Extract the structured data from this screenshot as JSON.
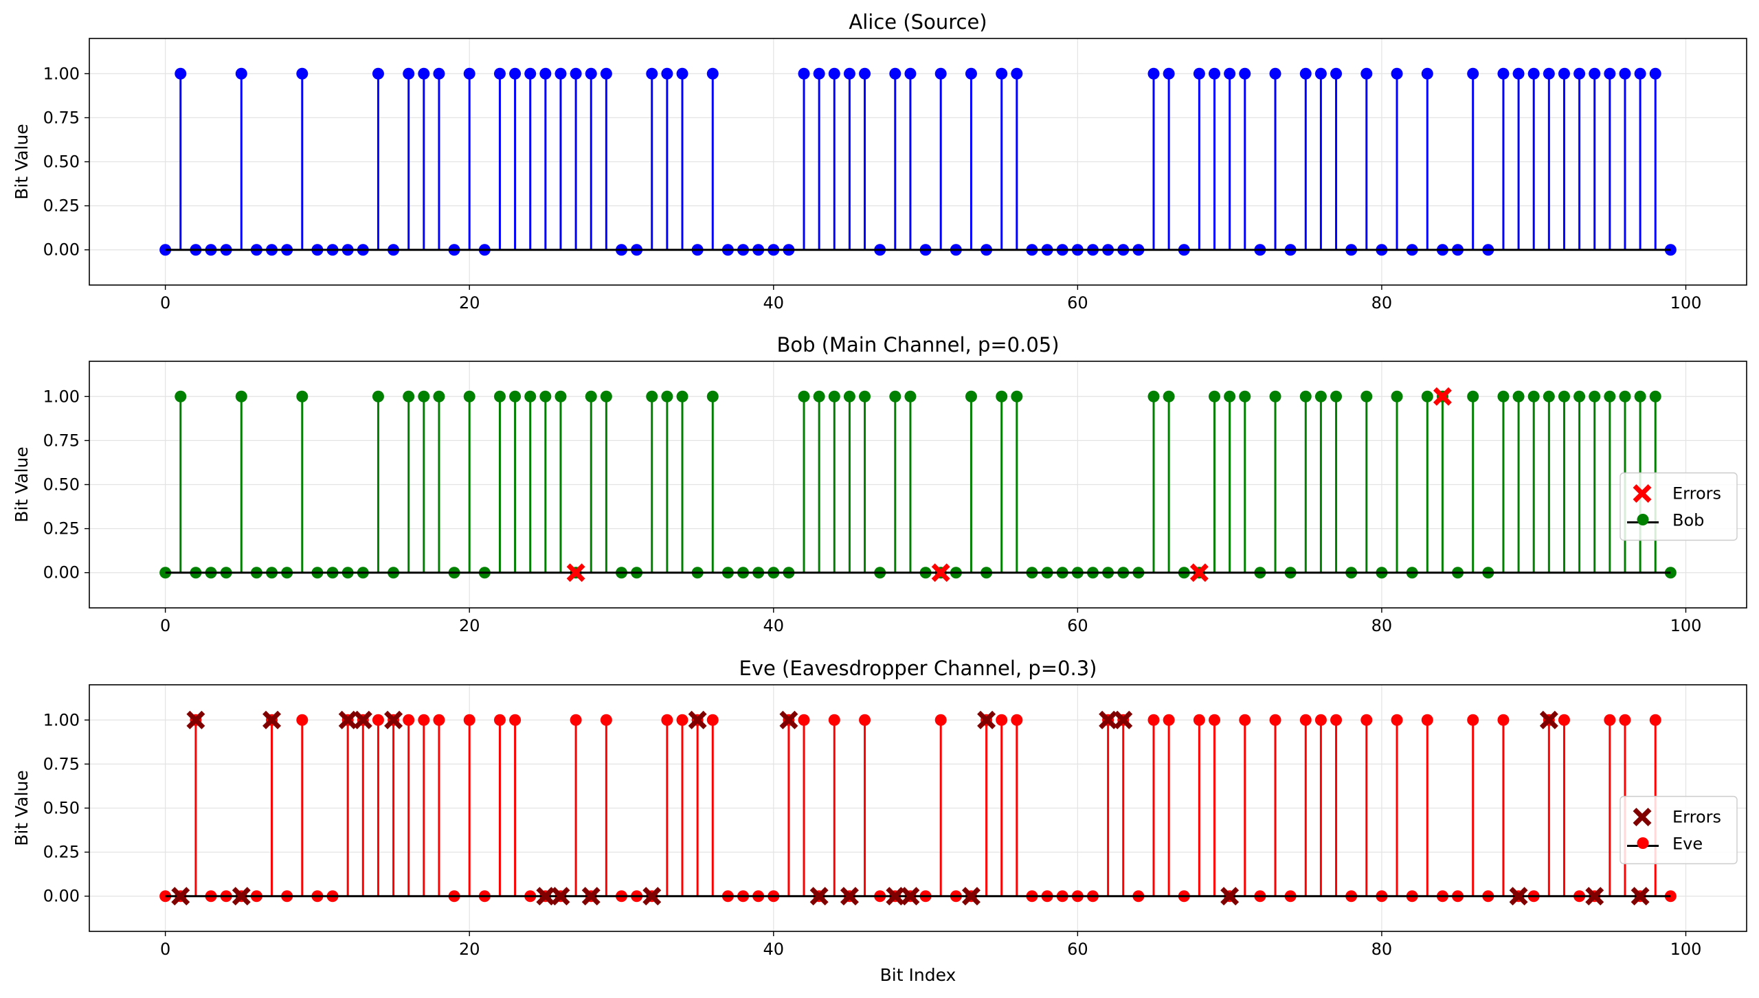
{
  "chart_data": [
    {
      "type": "stem",
      "title": "Alice (Source)",
      "xlabel": "",
      "ylabel": "Bit Value",
      "xlim": [
        -5,
        104
      ],
      "ylim": [
        -0.2,
        1.2
      ],
      "xticks": [
        0,
        20,
        40,
        60,
        80,
        100
      ],
      "yticks": [
        "0.00",
        "0.25",
        "0.50",
        "0.75",
        "1.00"
      ],
      "grid": true,
      "color": "#0000ff",
      "series": [
        {
          "values": [
            0,
            1,
            0,
            0,
            0,
            1,
            0,
            0,
            0,
            1,
            0,
            0,
            0,
            0,
            1,
            0,
            1,
            1,
            1,
            0,
            1,
            0,
            1,
            1,
            1,
            1,
            1,
            1,
            1,
            1,
            0,
            0,
            1,
            1,
            1,
            0,
            1,
            0,
            0,
            0,
            0,
            0,
            1,
            1,
            1,
            1,
            1,
            0,
            1,
            1,
            0,
            1,
            0,
            1,
            0,
            1,
            1,
            0,
            0,
            0,
            0,
            0,
            0,
            0,
            0,
            1,
            1,
            0,
            1,
            1,
            1,
            1,
            0,
            1,
            0,
            1,
            1,
            1,
            0,
            1,
            0,
            1,
            0,
            1,
            0,
            0,
            1,
            0,
            1,
            1,
            1,
            1,
            1,
            1,
            1,
            1,
            1,
            1,
            1,
            0
          ]
        }
      ],
      "errors": [],
      "legend": null
    },
    {
      "type": "stem",
      "title": "Bob (Main Channel, p=0.05)",
      "xlabel": "",
      "ylabel": "Bit Value",
      "xlim": [
        -5,
        104
      ],
      "ylim": [
        -0.2,
        1.2
      ],
      "xticks": [
        0,
        20,
        40,
        60,
        80,
        100
      ],
      "yticks": [
        "0.00",
        "0.25",
        "0.50",
        "0.75",
        "1.00"
      ],
      "grid": true,
      "color": "#008000",
      "series": [
        {
          "name": "Bob",
          "values": [
            0,
            1,
            0,
            0,
            0,
            1,
            0,
            0,
            0,
            1,
            0,
            0,
            0,
            0,
            1,
            0,
            1,
            1,
            1,
            0,
            1,
            0,
            1,
            1,
            1,
            1,
            1,
            0,
            1,
            1,
            0,
            0,
            1,
            1,
            1,
            0,
            1,
            0,
            0,
            0,
            0,
            0,
            1,
            1,
            1,
            1,
            1,
            0,
            1,
            1,
            0,
            0,
            0,
            1,
            0,
            1,
            1,
            0,
            0,
            0,
            0,
            0,
            0,
            0,
            0,
            1,
            1,
            0,
            0,
            1,
            1,
            1,
            0,
            1,
            0,
            1,
            1,
            1,
            0,
            1,
            0,
            1,
            0,
            1,
            1,
            0,
            1,
            0,
            1,
            1,
            1,
            1,
            1,
            1,
            1,
            1,
            1,
            1,
            1,
            0
          ]
        }
      ],
      "errors": [
        27,
        51,
        68,
        84
      ],
      "error_color": "#ff0000",
      "legend": {
        "placement": "center-right",
        "entries": [
          "Errors",
          "Bob"
        ]
      }
    },
    {
      "type": "stem",
      "title": "Eve (Eavesdropper Channel, p=0.3)",
      "xlabel": "Bit Index",
      "ylabel": "Bit Value",
      "xlim": [
        -5,
        104
      ],
      "ylim": [
        -0.2,
        1.2
      ],
      "xticks": [
        0,
        20,
        40,
        60,
        80,
        100
      ],
      "yticks": [
        "0.00",
        "0.25",
        "0.50",
        "0.75",
        "1.00"
      ],
      "grid": true,
      "color": "#ff0000",
      "series": [
        {
          "name": "Eve",
          "values": [
            0,
            0,
            1,
            0,
            0,
            0,
            0,
            1,
            0,
            1,
            0,
            0,
            1,
            1,
            1,
            1,
            1,
            1,
            1,
            0,
            1,
            0,
            1,
            1,
            0,
            0,
            0,
            1,
            0,
            1,
            0,
            0,
            0,
            1,
            1,
            1,
            1,
            0,
            0,
            0,
            0,
            1,
            1,
            0,
            1,
            0,
            1,
            0,
            0,
            0,
            0,
            1,
            0,
            0,
            1,
            1,
            1,
            0,
            0,
            0,
            0,
            0,
            1,
            1,
            0,
            1,
            1,
            0,
            1,
            1,
            0,
            1,
            0,
            1,
            0,
            1,
            1,
            1,
            0,
            1,
            0,
            1,
            0,
            1,
            0,
            0,
            1,
            0,
            1,
            0,
            0,
            1,
            1,
            0,
            0,
            1,
            1,
            0,
            1,
            0
          ]
        }
      ],
      "errors": [
        1,
        2,
        5,
        7,
        12,
        13,
        15,
        25,
        26,
        28,
        32,
        35,
        41,
        43,
        45,
        48,
        49,
        53,
        54,
        62,
        63,
        70,
        89,
        91,
        94,
        97
      ],
      "error_color": "#800000",
      "legend": {
        "placement": "center-right",
        "entries": [
          "Errors",
          "Eve"
        ]
      }
    }
  ]
}
